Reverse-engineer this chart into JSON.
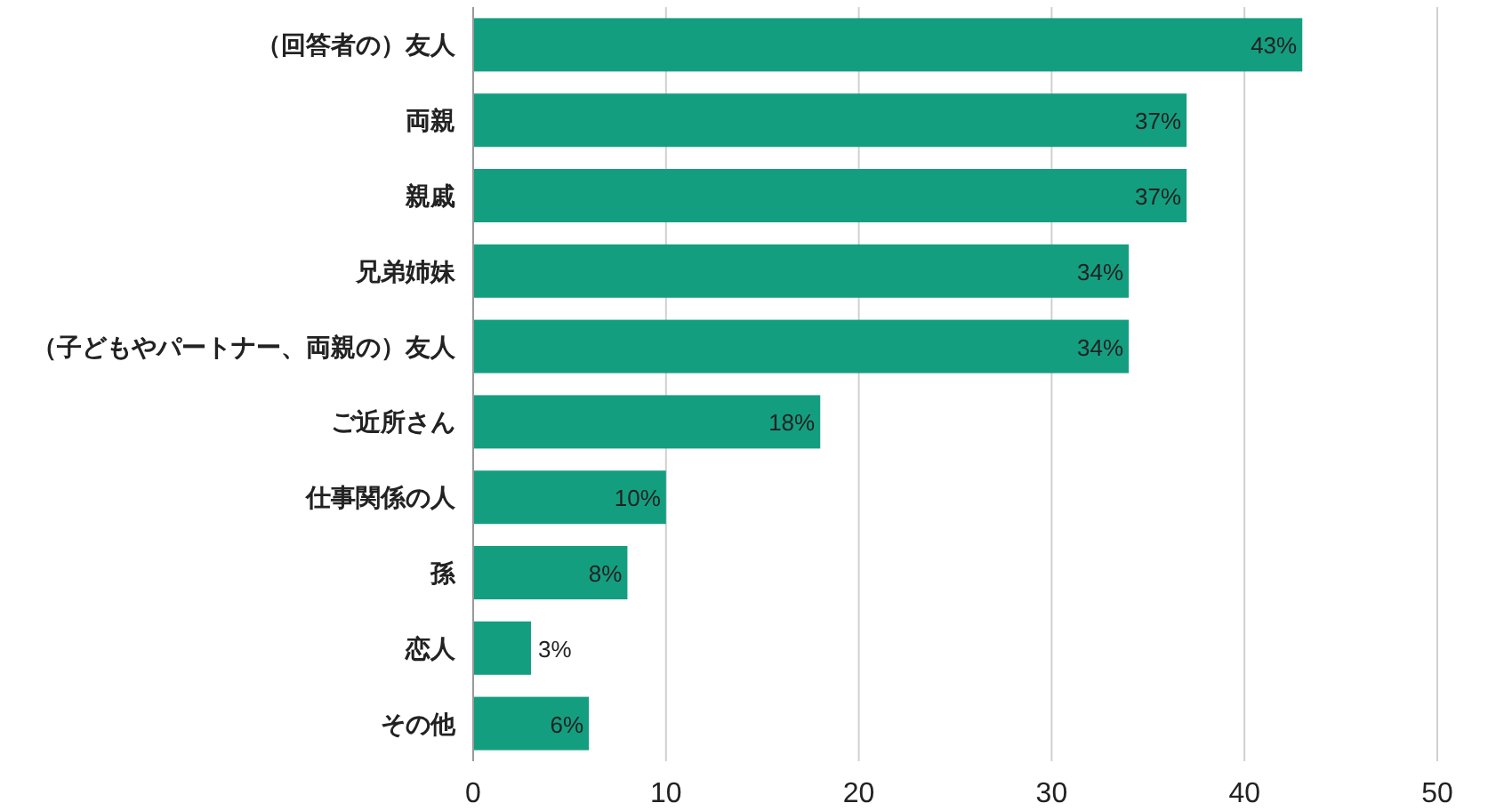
{
  "chart_data": {
    "type": "bar",
    "orientation": "horizontal",
    "categories": [
      "（回答者の）友人",
      "両親",
      "親戚",
      "兄弟姉妹",
      "（子どもやパートナー、両親の）友人",
      "ご近所さん",
      "仕事関係の人",
      "孫",
      "恋人",
      "その他"
    ],
    "values": [
      43,
      37,
      37,
      34,
      34,
      18,
      10,
      8,
      3,
      6
    ],
    "value_labels": [
      "43%",
      "37%",
      "37%",
      "34%",
      "34%",
      "18%",
      "10%",
      "8%",
      "3%",
      "6%"
    ],
    "color": "#149e80",
    "xlim": [
      0,
      50
    ],
    "xticks": [
      0,
      10,
      20,
      30,
      40,
      50
    ],
    "grid": "x"
  }
}
